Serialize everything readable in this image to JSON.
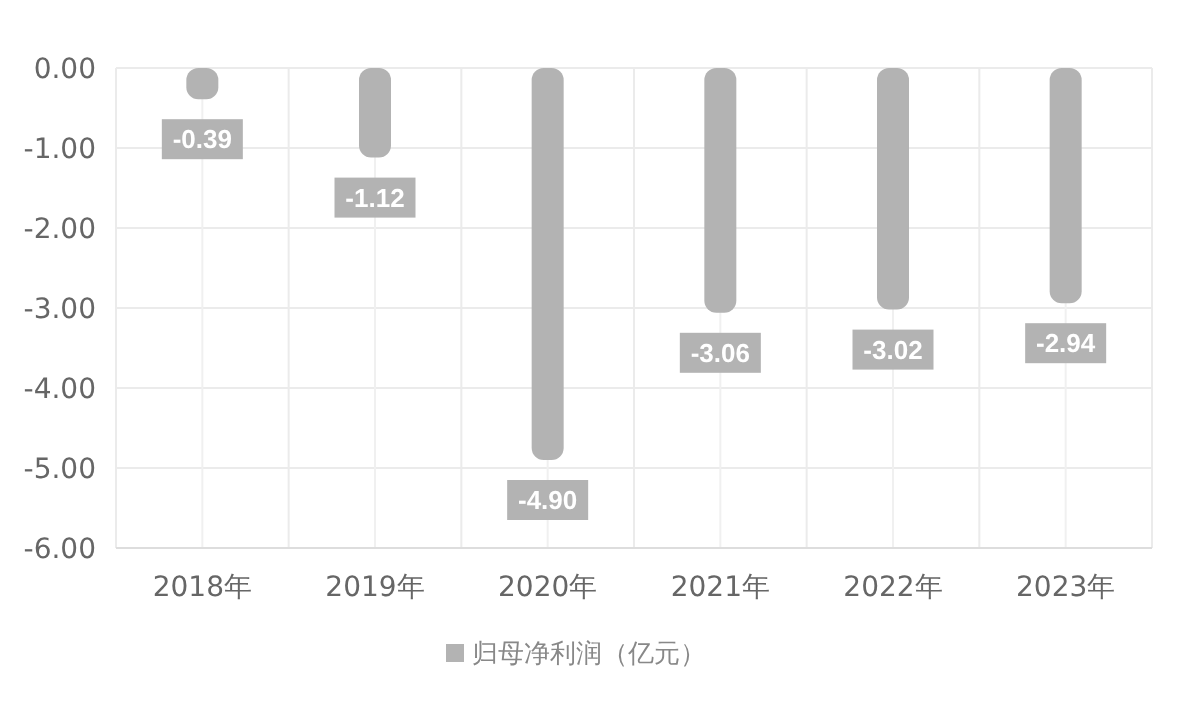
{
  "chart_data": {
    "type": "bar",
    "categories": [
      "2018年",
      "2019年",
      "2020年",
      "2021年",
      "2022年",
      "2023年"
    ],
    "series": [
      {
        "name": "归母净利润（亿元）",
        "color": "#b3b3b3",
        "values": [
          -0.39,
          -1.12,
          -4.9,
          -3.06,
          -3.02,
          -2.94
        ],
        "value_labels": [
          "-0.39",
          "-1.12",
          "-4.90",
          "-3.06",
          "-3.02",
          "-2.94"
        ]
      }
    ],
    "ylim": [
      -6,
      0
    ],
    "yticks": [
      {
        "value": 0,
        "label": "0.00"
      },
      {
        "value": -1,
        "label": "-1.00"
      },
      {
        "value": -2,
        "label": "-2.00"
      },
      {
        "value": -3,
        "label": "-3.00"
      },
      {
        "value": -4,
        "label": "-4.00"
      },
      {
        "value": -5,
        "label": "-5.00"
      },
      {
        "value": -6,
        "label": "-6.00"
      }
    ],
    "grid": true,
    "legend": "bottom"
  }
}
